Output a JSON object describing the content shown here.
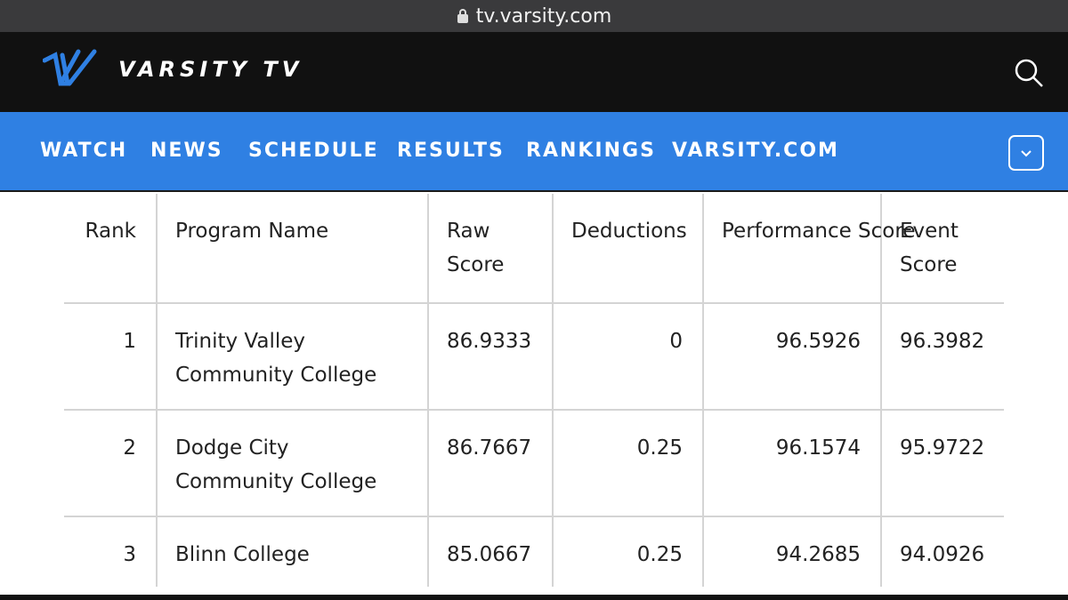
{
  "browser": {
    "url": "tv.varsity.com"
  },
  "header": {
    "brand": "VARSITY TV"
  },
  "nav": {
    "items": [
      "WATCH",
      "NEWS",
      "SCHEDULE",
      "RESULTS",
      "RANKINGS",
      "VARSITY.COM"
    ]
  },
  "table": {
    "headers": [
      "Rank",
      "Program Name",
      "Raw Score",
      "Deductions",
      "Performance Score",
      "Event Score"
    ],
    "rows": [
      [
        "1",
        "Trinity Valley Community College",
        "86.9333",
        "0",
        "96.5926",
        "96.3982"
      ],
      [
        "2",
        "Dodge City Community College",
        "86.7667",
        "0.25",
        "96.1574",
        "95.9722"
      ],
      [
        "3",
        "Blinn College",
        "85.0667",
        "0.25",
        "94.2685",
        "94.0926"
      ]
    ]
  }
}
